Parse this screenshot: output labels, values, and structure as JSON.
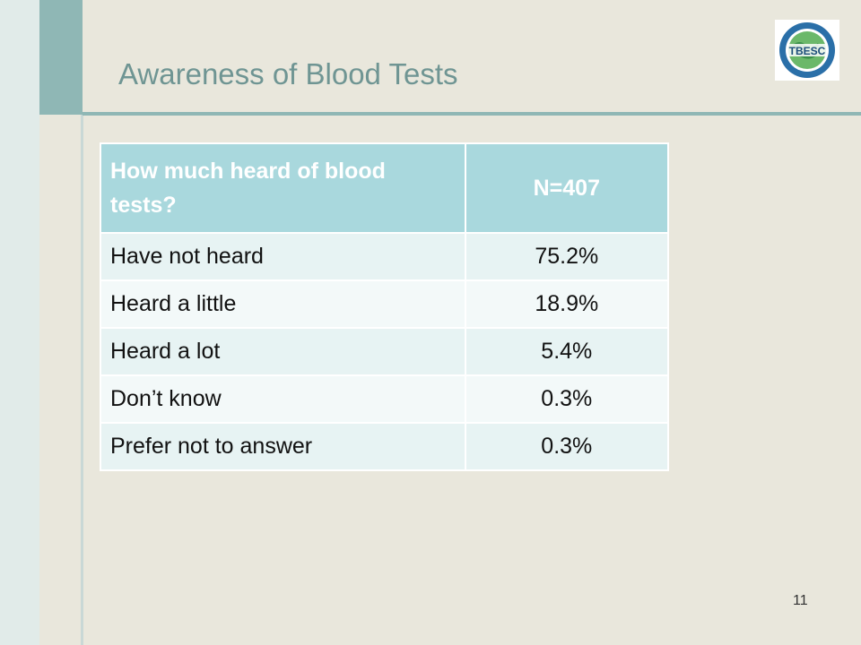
{
  "slide": {
    "title": "Awareness of Blood Tests",
    "page_number": "11",
    "logo_text": "TBESC",
    "logo_icon": "globe-seal-icon"
  },
  "table": {
    "headers": [
      "How much heard of blood tests?",
      "N=407"
    ],
    "rows": [
      {
        "label": "Have not heard",
        "value": "75.2%"
      },
      {
        "label": "Heard a little",
        "value": "18.9%"
      },
      {
        "label": "Heard a lot",
        "value": "5.4%"
      },
      {
        "label": "Don’t know",
        "value": "0.3%"
      },
      {
        "label": "Prefer not to answer",
        "value": "0.3%"
      }
    ]
  },
  "colors": {
    "accent": "#8fb7b5",
    "title": "#6f9593",
    "header_fill": "#a9d8dd",
    "background": "#e9e7dc"
  }
}
